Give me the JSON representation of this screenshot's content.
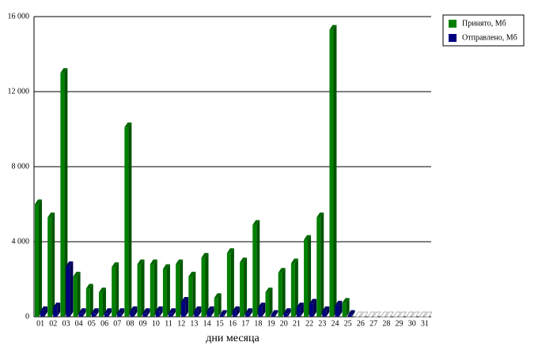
{
  "chart_data": {
    "type": "bar3d",
    "x_label": "дни месяца",
    "categories": [
      "01",
      "02",
      "03",
      "04",
      "05",
      "06",
      "07",
      "08",
      "09",
      "10",
      "11",
      "12",
      "13",
      "14",
      "15",
      "16",
      "17",
      "18",
      "19",
      "20",
      "21",
      "22",
      "23",
      "24",
      "25",
      "26",
      "27",
      "28",
      "29",
      "30",
      "31"
    ],
    "series": [
      {
        "name": "Принято, Мб",
        "color": "#008000",
        "values": [
          6000,
          5300,
          13000,
          2150,
          1500,
          1300,
          2650,
          10100,
          2800,
          2800,
          2550,
          2800,
          2150,
          3150,
          1000,
          3400,
          2900,
          4900,
          1300,
          2350,
          2850,
          4100,
          5300,
          15300,
          750,
          0,
          0,
          0,
          0,
          0,
          0
        ]
      },
      {
        "name": "Отправлено, Мб",
        "color": "#000080",
        "values": [
          300,
          500,
          2700,
          200,
          200,
          200,
          200,
          300,
          200,
          300,
          200,
          800,
          300,
          300,
          100,
          300,
          200,
          500,
          100,
          200,
          500,
          700,
          300,
          600,
          100,
          0,
          0,
          0,
          0,
          0,
          0
        ]
      }
    ],
    "ylim": [
      0,
      16000
    ],
    "yticks": [
      0,
      {
        "value": 4000,
        "label": "4 000"
      },
      {
        "value": 8000,
        "label": "8 000"
      },
      {
        "value": 12000,
        "label": "12 000"
      },
      {
        "value": 16000,
        "label": "16 000"
      }
    ],
    "grid": true,
    "legend": "top-right"
  }
}
